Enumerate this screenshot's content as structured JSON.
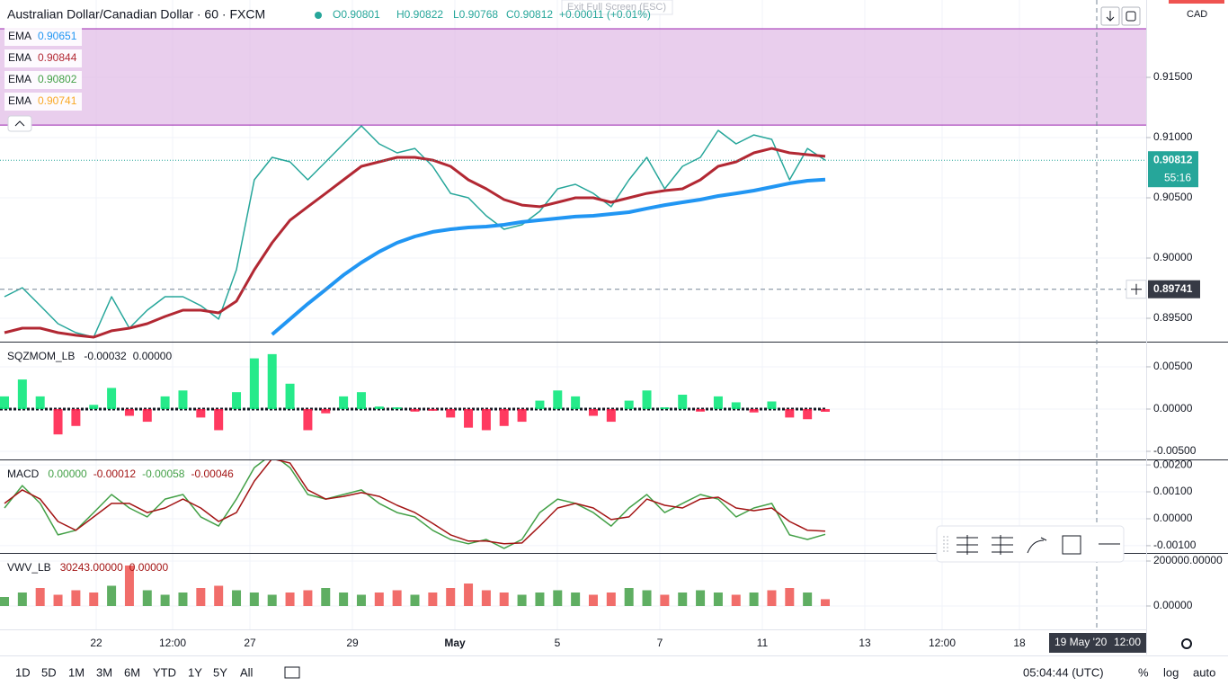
{
  "header": {
    "symbol": "Australian Dollar/Canadian Dollar · 60 · FXCM",
    "ohlc": [
      "O0.90801",
      "H0.90822",
      "L0.90768",
      "C0.90812",
      "+0.00011 (+0.01%)"
    ]
  },
  "exit_fullscreen": "Exit Full Screen (ESC)",
  "currency": "CAD",
  "ema_legend": [
    {
      "name": "EMA",
      "value": "0.90651",
      "color": "#2196f3"
    },
    {
      "name": "EMA",
      "value": "0.90844",
      "color": "#b22833"
    },
    {
      "name": "EMA",
      "value": "0.90802",
      "color": "#43a047"
    },
    {
      "name": "EMA",
      "value": "0.90741",
      "color": "#f9a825"
    }
  ],
  "last_price": {
    "value": 0.90812,
    "label": "0.90812",
    "countdown": "55:16"
  },
  "crosshair": {
    "value": 0.89741,
    "label": "0.89741",
    "date": "19 May '20",
    "time": "12:00"
  },
  "time_axis": [
    "22",
    "12:00",
    "27",
    "29",
    "May",
    "5",
    "7",
    "11",
    "13",
    "12:00",
    "18"
  ],
  "panes": {
    "main": {
      "type": "line",
      "ylim": [
        0.89306,
        0.92142
      ],
      "zone": [
        0.91104,
        0.91903
      ],
      "zone_color": "#e1bee7",
      "yticks": [
        {
          "value": 0.915,
          "label": "0.91500"
        },
        {
          "value": 0.91,
          "label": "0.91000"
        },
        {
          "value": 0.905,
          "label": "0.90500"
        },
        {
          "value": 0.9,
          "label": "0.90000"
        },
        {
          "value": 0.895,
          "label": "0.89500"
        }
      ],
      "series": [
        {
          "type": "line",
          "color": "#26a69a",
          "width": 1.5,
          "values": [
            0.89679,
            0.89754,
            0.89605,
            0.89455,
            0.89381,
            0.89343,
            0.89679,
            0.89418,
            0.89567,
            0.89679,
            0.89679,
            0.89605,
            0.89493,
            0.89903,
            0.90649,
            0.90836,
            0.90799,
            0.90649,
            0.90799,
            0.90948,
            0.91097,
            0.90948,
            0.90873,
            0.9091,
            0.90761,
            0.90537,
            0.905,
            0.90351,
            0.90239,
            0.90276,
            0.90388,
            0.90575,
            0.90612,
            0.90537,
            0.90426,
            0.90649,
            0.90836,
            0.90575,
            0.90761,
            0.90836,
            0.9106,
            0.90948,
            0.91022,
            0.90985,
            0.90649,
            0.9091,
            0.90812
          ]
        },
        {
          "type": "line",
          "color": "#2196f3",
          "width": 4,
          "values": [
            null,
            null,
            null,
            null,
            null,
            null,
            null,
            null,
            null,
            null,
            null,
            null,
            null,
            null,
            null,
            0.89366,
            0.89493,
            0.8962,
            0.89739,
            0.89859,
            0.89963,
            0.90053,
            0.90127,
            0.90179,
            0.90217,
            0.90239,
            0.90254,
            0.90261,
            0.90276,
            0.90299,
            0.90314,
            0.90329,
            0.90344,
            0.90351,
            0.90366,
            0.90381,
            0.90411,
            0.9044,
            0.90463,
            0.90485,
            0.90515,
            0.90537,
            0.9056,
            0.9059,
            0.9062,
            0.90642,
            0.90651
          ]
        },
        {
          "type": "line",
          "color": "#b22833",
          "width": 3,
          "values": [
            0.89381,
            0.89418,
            0.89418,
            0.89381,
            0.89359,
            0.89343,
            0.89396,
            0.89418,
            0.89455,
            0.89515,
            0.89567,
            0.89567,
            0.89545,
            0.89642,
            0.89903,
            0.90127,
            0.90314,
            0.90426,
            0.90537,
            0.90649,
            0.90761,
            0.90799,
            0.90836,
            0.90836,
            0.90813,
            0.90761,
            0.90649,
            0.90575,
            0.90485,
            0.9044,
            0.90426,
            0.90463,
            0.905,
            0.905,
            0.90463,
            0.905,
            0.90537,
            0.9056,
            0.90575,
            0.90649,
            0.90761,
            0.90799,
            0.90873,
            0.9091,
            0.90873,
            0.90858,
            0.90844
          ]
        }
      ]
    },
    "sqzmom": {
      "label": "SQZMOM_LB",
      "readouts": [
        "-0.00032",
        "0.00000"
      ],
      "ylim": [
        -0.00596,
        0.00787
      ],
      "yticks": [
        {
          "value": 0.005,
          "label": "0.00500"
        },
        {
          "value": 0,
          "label": "0.00000"
        },
        {
          "value": -0.005,
          "label": "-0.00500"
        }
      ],
      "series": [
        {
          "type": "histogram",
          "up_color": "#00e676",
          "down_color": "#ff1744",
          "values": [
            0.0015,
            0.0035,
            0.0015,
            -0.003,
            -0.002,
            0.0005,
            0.0025,
            -0.0008,
            -0.0015,
            0.0015,
            0.0022,
            -0.001,
            -0.0025,
            0.002,
            0.006,
            0.0065,
            0.003,
            -0.0025,
            -0.0005,
            0.0015,
            0.002,
            0.0003,
            0.0002,
            -0.0003,
            -0.0002,
            -0.001,
            -0.0022,
            -0.0025,
            -0.002,
            -0.0015,
            0.001,
            0.0022,
            0.0015,
            -0.0008,
            -0.0015,
            0.001,
            0.0022,
            0.0002,
            0.0017,
            -0.0003,
            0.0015,
            0.0008,
            -0.0004,
            0.0009,
            -0.001,
            -0.0012,
            -0.00032
          ]
        }
      ]
    },
    "macd": {
      "label": "MACD",
      "readouts": [
        "0.00000",
        "-0.00012",
        "-0.00058",
        "-0.00046"
      ],
      "ylim": [
        -0.00127,
        0.00217
      ],
      "yticks": [
        {
          "value": 0.002,
          "label": "0.00200"
        },
        {
          "value": 0.001,
          "label": "0.00100"
        },
        {
          "value": 0,
          "label": "0.00000"
        },
        {
          "value": -0.001,
          "label": "-0.00100"
        }
      ],
      "series": [
        {
          "type": "line",
          "color": "#43a047",
          "width": 1.5,
          "values": [
            0.0004,
            0.00123,
            0.00057,
            -0.0006,
            -0.00043,
            0.00023,
            0.0009,
            0.0004,
            7e-05,
            0.00073,
            0.0009,
            7e-05,
            -0.00027,
            0.00073,
            0.0019,
            0.0024,
            0.0019,
            0.0009,
            0.00073,
            0.0009,
            0.00107,
            0.00057,
            0.00023,
            7e-05,
            -0.00043,
            -0.00077,
            -0.00093,
            -0.00077,
            -0.0011,
            -0.00077,
            0.00023,
            0.00073,
            0.00057,
            0.00023,
            -0.00027,
            0.0004,
            0.0009,
            0.00023,
            0.00057,
            0.0009,
            0.00073,
            7e-05,
            0.0004,
            0.00057,
            -0.0006,
            -0.00077,
            -0.00058
          ]
        },
        {
          "type": "line",
          "color": "#a31515",
          "width": 1.5,
          "values": [
            0.00057,
            0.00107,
            0.00073,
            -0.0001,
            -0.00043,
            7e-05,
            0.00057,
            0.00057,
            0.00023,
            0.0004,
            0.00073,
            0.0004,
            -0.0001,
            0.00023,
            0.0014,
            0.00223,
            0.00207,
            0.00107,
            0.00073,
            0.00083,
            0.00097,
            0.00083,
            0.0005,
            0.00023,
            -0.00017,
            -0.0006,
            -0.00083,
            -0.00083,
            -0.00093,
            -0.0009,
            -0.00027,
            0.0004,
            0.00057,
            0.0004,
            -3e-05,
            7e-05,
            0.00073,
            0.0005,
            0.0004,
            0.00073,
            0.0008,
            0.0004,
            0.0003,
            0.0004,
            -0.0001,
            -0.00043,
            -0.00046
          ]
        }
      ]
    },
    "vwv": {
      "label": "VWV_LB",
      "readouts": [
        "30243.00000",
        "0.00000"
      ],
      "ylim": [
        -104000,
        232000
      ],
      "yticks": [
        {
          "value": 200000,
          "label": "200000.00000"
        },
        {
          "value": 0,
          "label": "0.00000"
        }
      ],
      "series": [
        {
          "type": "volume",
          "up_color": "#43a047",
          "down_color": "#ef5350",
          "values": [
            40000,
            60000,
            80000,
            50000,
            70000,
            60000,
            90000,
            180000,
            70000,
            50000,
            60000,
            80000,
            90000,
            70000,
            60000,
            50000,
            60000,
            70000,
            80000,
            60000,
            50000,
            60000,
            70000,
            50000,
            60000,
            80000,
            100000,
            70000,
            60000,
            50000,
            60000,
            70000,
            60000,
            50000,
            60000,
            80000,
            70000,
            50000,
            60000,
            70000,
            60000,
            50000,
            60000,
            70000,
            80000,
            60000,
            30243
          ]
        }
      ]
    }
  },
  "ranges": [
    "1D",
    "5D",
    "1M",
    "3M",
    "6M",
    "YTD",
    "1Y",
    "5Y",
    "All"
  ],
  "clock": "05:04:44 (UTC)",
  "scale_options": [
    "%",
    "log",
    "auto"
  ]
}
